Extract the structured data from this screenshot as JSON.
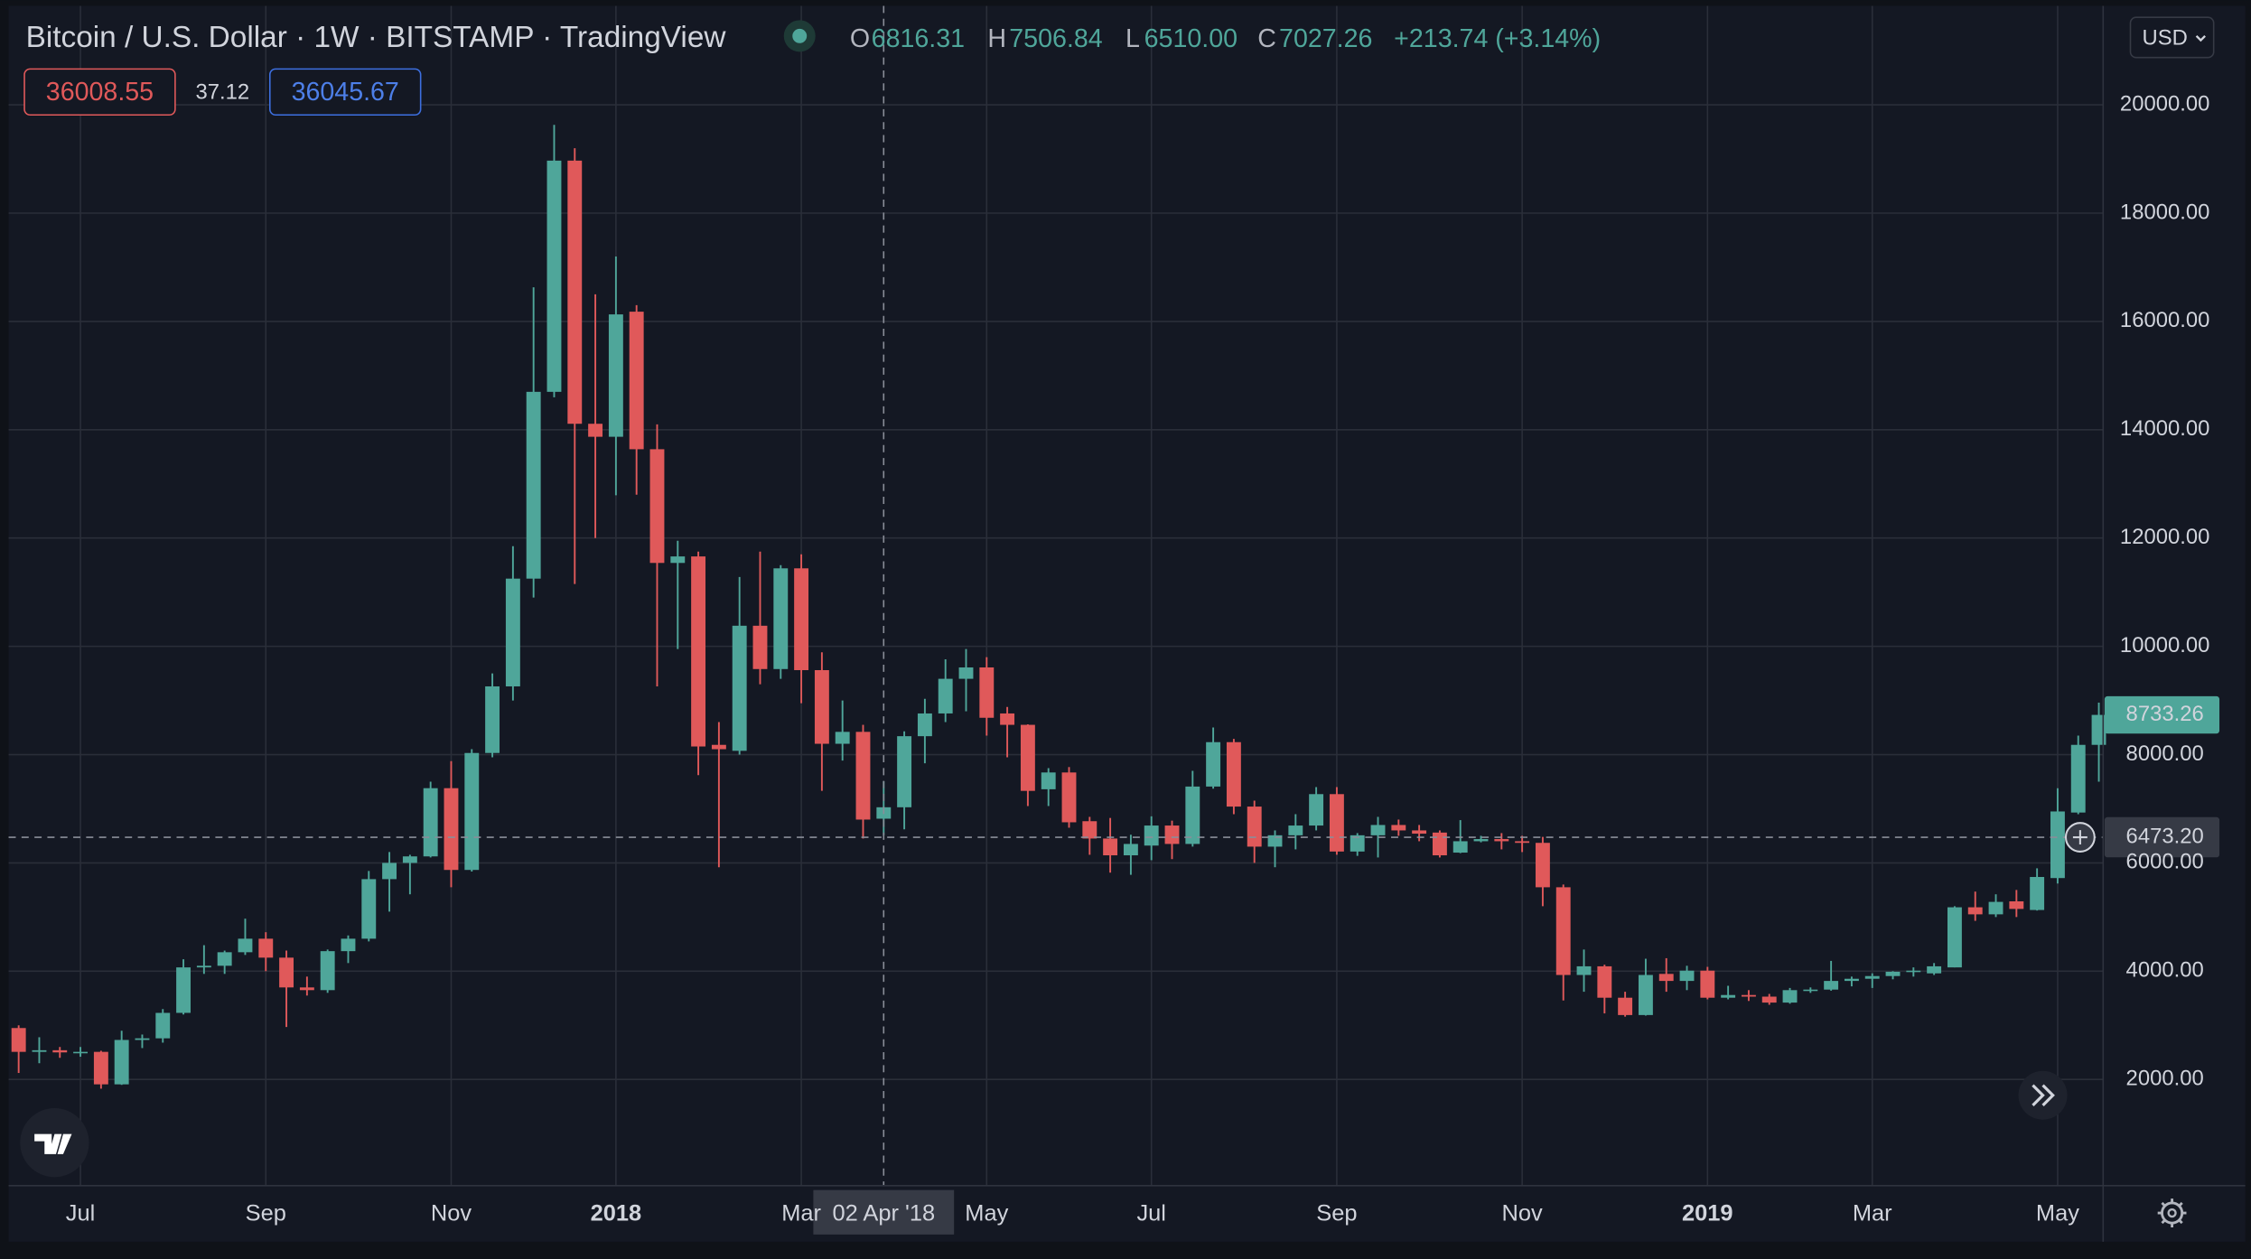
{
  "header": {
    "title": "Bitcoin / U.S. Dollar · 1W · BITSTAMP · TradingView",
    "ohlc": [
      {
        "key": "O",
        "value": "6816.31"
      },
      {
        "key": "H",
        "value": "7506.84"
      },
      {
        "key": "L",
        "value": "6510.00"
      },
      {
        "key": "C",
        "value": "7027.26"
      }
    ],
    "change": "+213.74 (+3.14%)",
    "sell": "36008.55",
    "spread": "37.12",
    "buy": "36045.67",
    "currency": "USD"
  },
  "chart_data": {
    "type": "candlestick",
    "categories": [
      null,
      null,
      null,
      "Jul",
      null,
      null,
      null,
      null,
      null,
      null,
      null,
      null,
      "Sep",
      null,
      null,
      null,
      null,
      null,
      null,
      null,
      null,
      "Nov",
      null,
      null,
      null,
      null,
      null,
      null,
      null,
      "2018",
      null,
      null,
      null,
      null,
      null,
      null,
      null,
      null,
      "Mar",
      null,
      null,
      null,
      null,
      null,
      null,
      null,
      null,
      "May",
      null,
      null,
      null,
      null,
      null,
      null,
      null,
      "Jul",
      null,
      null,
      null,
      null,
      null,
      null,
      null,
      null,
      "Sep",
      null,
      null,
      null,
      null,
      null,
      null,
      null,
      null,
      "Nov",
      null,
      null,
      null,
      null,
      null,
      null,
      null,
      null,
      "2019",
      null,
      null,
      null,
      null,
      null,
      null,
      null,
      "Mar",
      null,
      null,
      null,
      null,
      null,
      null,
      null,
      null,
      "May",
      null,
      null
    ],
    "open": [
      2950,
      2510,
      2540,
      2500,
      2510,
      1910,
      2730,
      2760,
      3230,
      4070,
      4100,
      4350,
      4600,
      4250,
      3700,
      3650,
      4370,
      4600,
      5700,
      6000,
      6120,
      7380,
      5870,
      8030,
      9260,
      11250,
      14700,
      18970,
      14110,
      13870,
      16180,
      13640,
      11540,
      11660,
      8180,
      8070,
      10380,
      9580,
      11440,
      9560,
      8200,
      8420,
      6816.31,
      7027.26,
      8340,
      8760,
      9400,
      9610,
      8760,
      8550,
      7360,
      7670,
      6770,
      6450,
      6140,
      6320,
      6690,
      6350,
      7410,
      8230,
      7040,
      6300,
      6510,
      6690,
      7270,
      6210,
      6510,
      6700,
      6600,
      6560,
      6190,
      6400,
      6440,
      6400,
      6370,
      5550,
      3930,
      4090,
      3510,
      3190,
      3950,
      3820,
      4010,
      3510,
      3560,
      3530,
      3420,
      3650,
      3660,
      3820,
      3860,
      3910,
      3990,
      3960,
      4070,
      5180,
      5050,
      5290,
      5130,
      5720,
      6930,
      8180
    ],
    "high": [
      3000,
      2780,
      2600,
      2600,
      2530,
      2900,
      2830,
      3300,
      4220,
      4480,
      4380,
      4970,
      4720,
      4380,
      3900,
      4400,
      4660,
      5850,
      6200,
      6150,
      7500,
      7880,
      8100,
      9500,
      11850,
      16630,
      19630,
      19200,
      16500,
      17200,
      16300,
      14100,
      11950,
      11750,
      8600,
      11280,
      11750,
      11500,
      11700,
      9890,
      9000,
      8550,
      7506.84,
      8430,
      9030,
      9760,
      9950,
      9800,
      8880,
      8560,
      7750,
      7770,
      6850,
      6830,
      6520,
      6860,
      6780,
      7700,
      8500,
      8290,
      7150,
      6600,
      6900,
      7400,
      7400,
      6550,
      6850,
      6800,
      6700,
      6600,
      6790,
      6500,
      6550,
      6500,
      6480,
      5600,
      4400,
      4120,
      3620,
      4230,
      4240,
      4100,
      4080,
      3730,
      3650,
      3580,
      3690,
      3700,
      4190,
      3900,
      3960,
      4000,
      4070,
      4150,
      5200,
      5470,
      5420,
      5500,
      5900,
      7380,
      8350,
      8960
    ],
    "low": [
      2120,
      2300,
      2400,
      2420,
      1830,
      1900,
      2580,
      2680,
      3200,
      3950,
      3950,
      4300,
      4000,
      2970,
      3550,
      3600,
      4150,
      4550,
      5100,
      5420,
      6100,
      5550,
      5840,
      7950,
      9000,
      10900,
      14600,
      11150,
      12000,
      12790,
      12800,
      9260,
      9950,
      7620,
      5920,
      8000,
      9300,
      9400,
      8950,
      7330,
      7890,
      6450,
      6510.0,
      6620,
      7840,
      8600,
      8800,
      8350,
      7950,
      7050,
      7050,
      6650,
      6150,
      5820,
      5780,
      6050,
      6070,
      6300,
      7370,
      6900,
      6000,
      5920,
      6250,
      6600,
      6150,
      6130,
      6100,
      6500,
      6400,
      6100,
      6180,
      6380,
      6250,
      6200,
      5200,
      3460,
      3620,
      3220,
      3160,
      3180,
      3620,
      3650,
      3480,
      3480,
      3450,
      3380,
      3400,
      3600,
      3640,
      3720,
      3690,
      3850,
      3900,
      3930,
      4070,
      4930,
      5000,
      5000,
      5120,
      5620,
      6900,
      7500
    ],
    "close": [
      2510,
      2540,
      2500,
      2510,
      1910,
      2730,
      2760,
      3230,
      4070,
      4100,
      4350,
      4600,
      4250,
      3700,
      3650,
      4370,
      4600,
      5700,
      6000,
      6120,
      7380,
      5870,
      8030,
      9260,
      11250,
      14700,
      18970,
      14110,
      13870,
      16130,
      13640,
      11540,
      11660,
      8150,
      8100,
      10380,
      9580,
      11440,
      9560,
      8200,
      8420,
      6800,
      7027.26,
      8340,
      8760,
      9400,
      9610,
      8680,
      8550,
      7330,
      7670,
      6750,
      6450,
      6140,
      6350,
      6690,
      6350,
      7410,
      8230,
      7040,
      6300,
      6510,
      6690,
      7270,
      6210,
      6510,
      6700,
      6600,
      6540,
      6140,
      6400,
      6440,
      6400,
      6370,
      5550,
      3930,
      4090,
      3510,
      3190,
      3930,
      3820,
      4010,
      3510,
      3560,
      3530,
      3420,
      3650,
      3660,
      3820,
      3860,
      3910,
      3990,
      4010,
      4090,
      5180,
      5050,
      5280,
      5150,
      5740,
      6950,
      8180,
      8733.26
    ],
    "up_color": "#4fa69a",
    "down_color": "#e0595a",
    "ylim": [
      38,
      21829
    ],
    "yticks": [
      {
        "value": 2000,
        "label": "2000.00"
      },
      {
        "value": 4000,
        "label": "4000.00"
      },
      {
        "value": 6000,
        "label": "6000.00"
      },
      {
        "value": 8000,
        "label": "8000.00"
      },
      {
        "value": 10000,
        "label": "10000.00"
      },
      {
        "value": 12000,
        "label": "12000.00"
      },
      {
        "value": 14000,
        "label": "14000.00"
      },
      {
        "value": 16000,
        "label": "16000.00"
      },
      {
        "value": 18000,
        "label": "18000.00"
      },
      {
        "value": 20000,
        "label": "20000.00"
      }
    ],
    "grid": true,
    "crosshair": {
      "price": {
        "value": 6473.2,
        "label": "6473.20"
      },
      "date": "02 Apr '18"
    }
  }
}
